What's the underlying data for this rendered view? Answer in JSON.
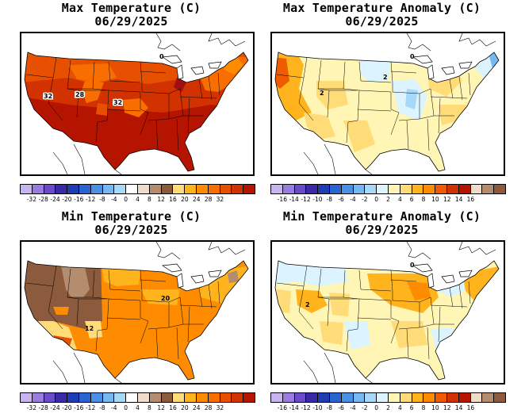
{
  "panels": [
    {
      "title": "Max Temperature (C)",
      "date": "06/29/2025",
      "map_labels": [
        "32",
        "28",
        "32"
      ],
      "colorbar": {
        "colors": [
          "#c8b4ee",
          "#9a7ce0",
          "#6a4cc8",
          "#3a2aa8",
          "#1e3cb4",
          "#2a64d2",
          "#4a90e6",
          "#78b8f0",
          "#a8d8f8",
          "#ffffff",
          "#f0dcc8",
          "#b48c6e",
          "#8c5a3c",
          "#ffdc78",
          "#ffb41e",
          "#ff8c00",
          "#f86e00",
          "#e65000",
          "#d23200",
          "#b41400"
        ],
        "ticks": [
          "-32",
          "-28",
          "-24",
          "-20",
          "-16",
          "-12",
          "-8",
          "-4",
          "0",
          "4",
          "8",
          "12",
          "16",
          "20",
          "24",
          "28",
          "32"
        ]
      }
    },
    {
      "title": "Max Temperature Anomaly (C)",
      "date": "06/29/2025",
      "map_labels": [
        "0",
        "2",
        "2"
      ],
      "colorbar": {
        "colors": [
          "#c8b4ee",
          "#9a7ce0",
          "#6a4cc8",
          "#3a2aa8",
          "#1e3cb4",
          "#2a64d2",
          "#4a90e6",
          "#78b8f0",
          "#a8d8f8",
          "#dcf4ff",
          "#fff5b4",
          "#ffdc78",
          "#ffb41e",
          "#ff8c00",
          "#f05a00",
          "#d23200",
          "#b41400",
          "#f0dcc8",
          "#b48c6e",
          "#8c5a3c"
        ],
        "ticks": [
          "-16",
          "-14",
          "-12",
          "-10",
          "-8",
          "-6",
          "-4",
          "-2",
          "0",
          "2",
          "4",
          "6",
          "8",
          "10",
          "12",
          "14",
          "16"
        ]
      }
    },
    {
      "title": "Min Temperature (C)",
      "date": "06/29/2025",
      "map_labels": [
        "20",
        "12"
      ],
      "colorbar": {
        "colors": [
          "#c8b4ee",
          "#9a7ce0",
          "#6a4cc8",
          "#3a2aa8",
          "#1e3cb4",
          "#2a64d2",
          "#4a90e6",
          "#78b8f0",
          "#a8d8f8",
          "#ffffff",
          "#f0dcc8",
          "#b48c6e",
          "#8c5a3c",
          "#ffdc78",
          "#ffb41e",
          "#ff8c00",
          "#f86e00",
          "#e65000",
          "#d23200",
          "#b41400"
        ],
        "ticks": [
          "-32",
          "-28",
          "-24",
          "-20",
          "-16",
          "-12",
          "-8",
          "-4",
          "0",
          "4",
          "8",
          "12",
          "16",
          "20",
          "24",
          "28",
          "32"
        ]
      }
    },
    {
      "title": "Min Temperature Anomaly (C)",
      "date": "06/29/2025",
      "map_labels": [
        "0",
        "2"
      ],
      "colorbar": {
        "colors": [
          "#c8b4ee",
          "#9a7ce0",
          "#6a4cc8",
          "#3a2aa8",
          "#1e3cb4",
          "#2a64d2",
          "#4a90e6",
          "#78b8f0",
          "#a8d8f8",
          "#dcf4ff",
          "#fff5b4",
          "#ffdc78",
          "#ffb41e",
          "#ff8c00",
          "#f05a00",
          "#d23200",
          "#b41400",
          "#f0dcc8",
          "#b48c6e",
          "#8c5a3c"
        ],
        "ticks": [
          "-16",
          "-14",
          "-12",
          "-10",
          "-8",
          "-6",
          "-4",
          "-2",
          "0",
          "2",
          "4",
          "6",
          "8",
          "10",
          "12",
          "14",
          "16"
        ]
      }
    }
  ]
}
